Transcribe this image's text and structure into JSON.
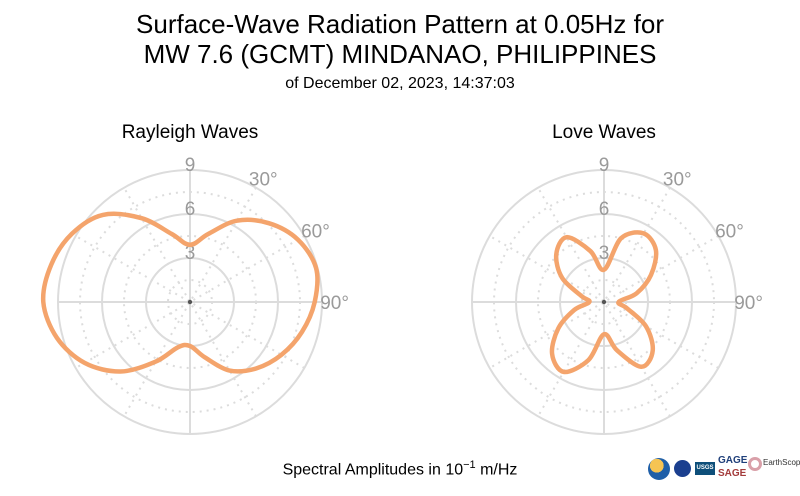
{
  "title": {
    "line1": "Surface-Wave Radiation Pattern at 0.05Hz for",
    "line2": "MW 7.6 (GCMT) MINDANAO, PHILIPPINES",
    "line3": "of December 02, 2023, 14:37:03"
  },
  "caption": {
    "prefix": "Spectral Amplitudes in ",
    "base": "10",
    "exponent": "−1",
    "unit": " m/Hz"
  },
  "logos": {
    "usgs": "USGS",
    "gage": "GAGE",
    "sage": "SAGE",
    "earthscope": "EarthScope"
  },
  "colors": {
    "pattern": "#f4a46c",
    "grid": "#dcdcdc",
    "labels": "#9a9a9a"
  },
  "chart_data": [
    {
      "type": "polar-line",
      "title": "Rayleigh Waves",
      "r_max": 9,
      "radial_ticks": [
        "3",
        "6",
        "9"
      ],
      "angle_ticks": [
        "30°",
        "60°",
        "90°"
      ],
      "angle_zero": "north",
      "angle_direction": "clockwise",
      "grid": true,
      "pattern": {
        "theta_deg": [
          0,
          15,
          30,
          45,
          60,
          75,
          90,
          105,
          120,
          135,
          150,
          165,
          180,
          195,
          210,
          225,
          240,
          255,
          270,
          285,
          300,
          315,
          330,
          345
        ],
        "r": [
          3.9,
          4.8,
          6.4,
          7.6,
          8.5,
          8.9,
          8.5,
          7.9,
          7.2,
          6.4,
          5.4,
          3.9,
          3.0,
          3.2,
          4.7,
          6.7,
          8.3,
          9.4,
          10.0,
          9.8,
          9.3,
          8.4,
          6.6,
          4.8
        ]
      }
    },
    {
      "type": "polar-line",
      "title": "Love Waves",
      "r_max": 9,
      "radial_ticks": [
        "3",
        "6",
        "9"
      ],
      "angle_ticks": [
        "30°",
        "60°",
        "90°"
      ],
      "angle_zero": "north",
      "angle_direction": "clockwise",
      "grid": true,
      "pattern": {
        "theta_deg": [
          0,
          15,
          30,
          45,
          60,
          75,
          90,
          105,
          120,
          135,
          150,
          165,
          180,
          195,
          210,
          225,
          240,
          255,
          270,
          285,
          300,
          315,
          330,
          345
        ],
        "r": [
          2.2,
          4.5,
          5.4,
          5.0,
          3.7,
          2.3,
          1.0,
          1.6,
          3.3,
          4.7,
          5.1,
          3.4,
          2.2,
          4.1,
          5.5,
          5.0,
          3.6,
          2.1,
          1.0,
          1.6,
          3.3,
          4.6,
          5.1,
          3.6
        ]
      }
    }
  ]
}
